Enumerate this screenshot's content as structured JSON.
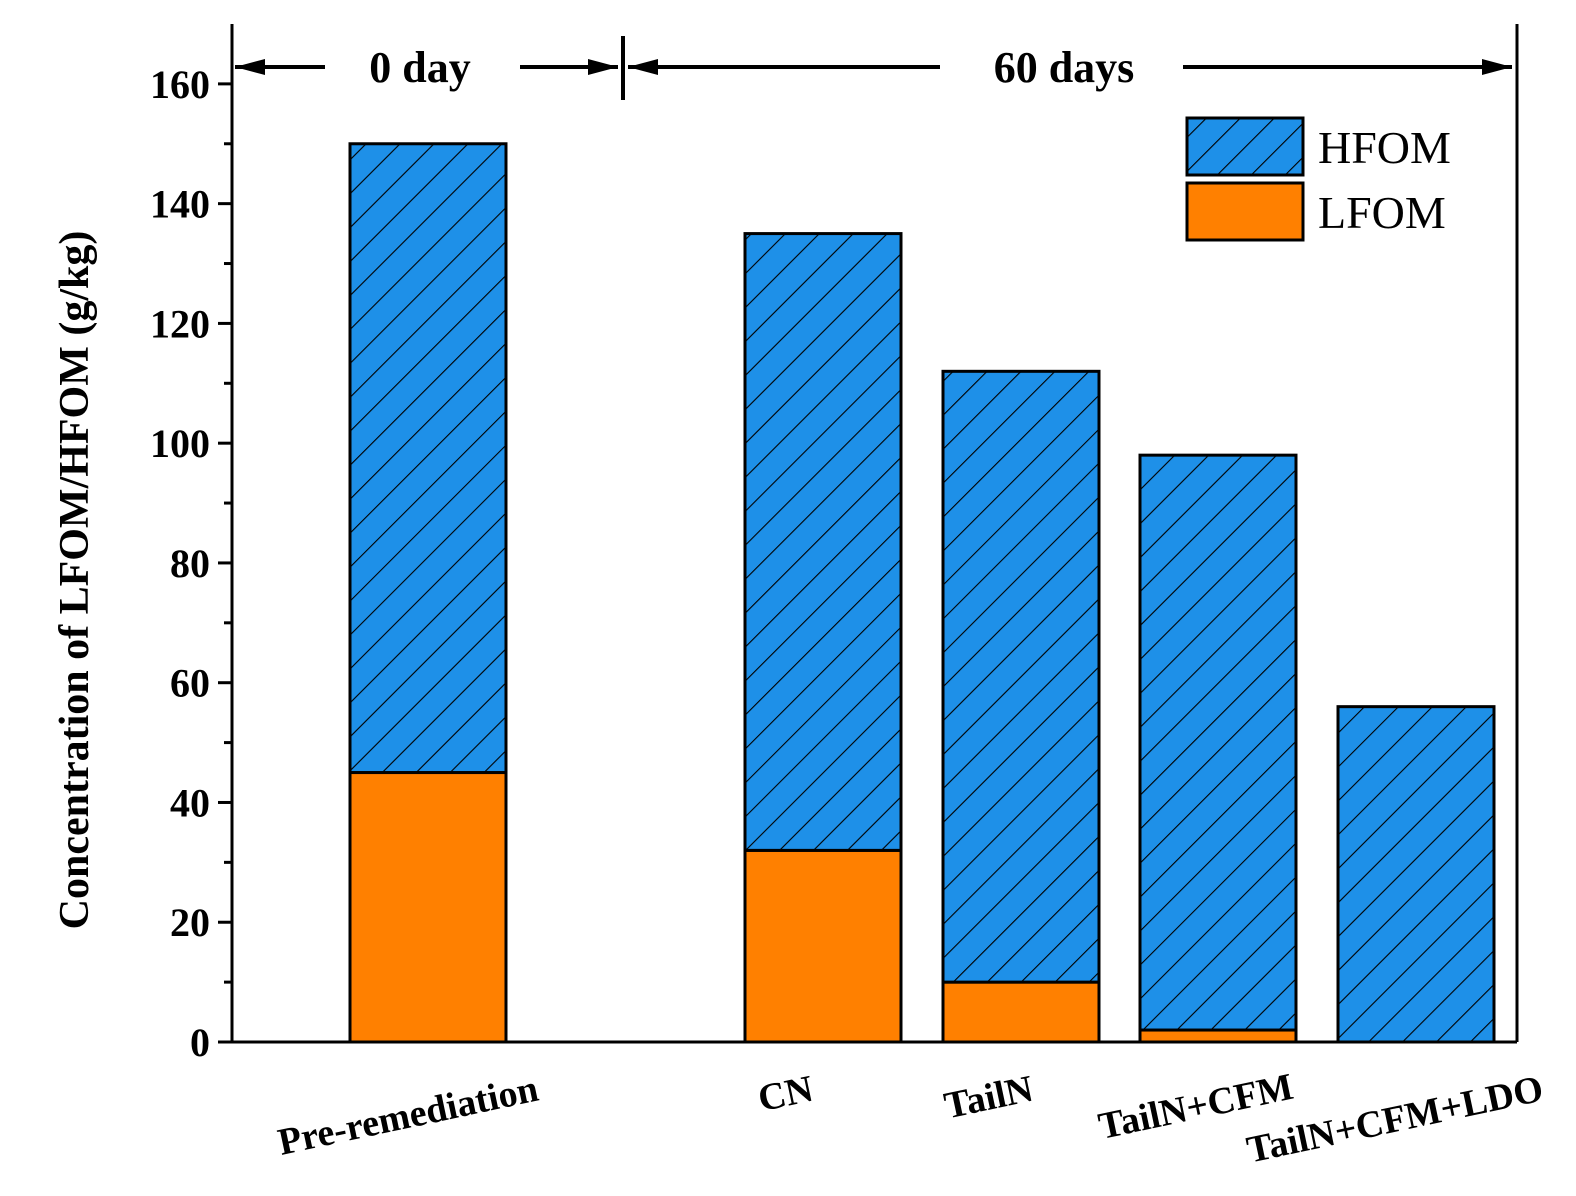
{
  "chart_data": {
    "type": "bar",
    "stacked": true,
    "categories": [
      "Pre-remediation",
      "CN",
      "TailN",
      "TailN+CFM",
      "TailN+CFM+LDO"
    ],
    "series": [
      {
        "name": "LFOM",
        "values": [
          45,
          32,
          10,
          2,
          0
        ],
        "color": "#FF8000",
        "pattern": "solid"
      },
      {
        "name": "HFOM",
        "values": [
          105,
          103,
          102,
          96,
          56
        ],
        "color": "#1E90E8",
        "pattern": "diagonal-hatch"
      }
    ],
    "totals": [
      150,
      135,
      112,
      98,
      56
    ],
    "ylabel": "Concentration of LFOM/HFOM (g/kg)",
    "xlabel": "",
    "ylim": [
      0,
      170
    ],
    "yticks": [
      0,
      20,
      40,
      60,
      80,
      100,
      120,
      140,
      160
    ],
    "grid": false,
    "legend": {
      "placement": "top-right",
      "order": [
        "HFOM",
        "LFOM"
      ]
    },
    "annotations": [
      {
        "text": "0 day",
        "spans": [
          "Pre-remediation"
        ]
      },
      {
        "text": "60 days",
        "spans": [
          "CN",
          "TailN",
          "TailN+CFM",
          "TailN+CFM+LDO"
        ]
      }
    ]
  }
}
